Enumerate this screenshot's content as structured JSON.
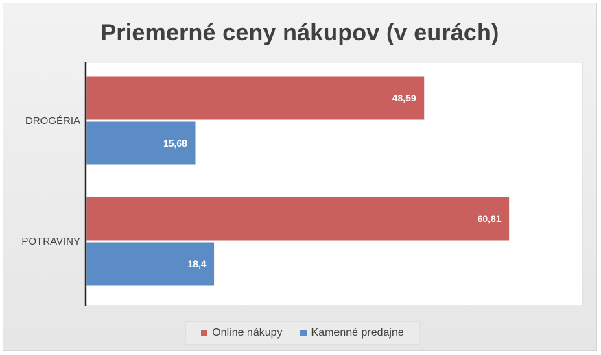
{
  "chart_data": {
    "type": "bar",
    "orientation": "horizontal",
    "title": "Priemerné ceny nákupov (v eurách)",
    "categories": [
      "DROGÉRIA",
      "POTRAVINY"
    ],
    "series": [
      {
        "name": "Online nákupy",
        "values": [
          48.59,
          60.81
        ],
        "labels": [
          "48,59",
          "60,81"
        ],
        "color": "#c9605e"
      },
      {
        "name": "Kamenné predajne",
        "values": [
          15.68,
          18.4
        ],
        "labels": [
          "15,68",
          "18,4"
        ],
        "color": "#5b8cc6"
      }
    ],
    "xlim": [
      0,
      70
    ],
    "grid": false,
    "legend_position": "bottom"
  }
}
